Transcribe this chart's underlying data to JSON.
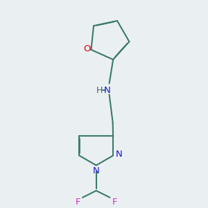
{
  "background_color": "#eaeff2",
  "bond_color": "#3a7a6a",
  "bond_width": 1.5,
  "atoms": {
    "O": {
      "color": "#dd0000"
    },
    "N": {
      "color": "#1a1acc"
    },
    "F": {
      "color": "#cc33cc"
    },
    "H": {
      "color": "#555577"
    }
  },
  "font_size": 9.5,
  "fig_size": [
    3.0,
    3.0
  ],
  "dpi": 100
}
